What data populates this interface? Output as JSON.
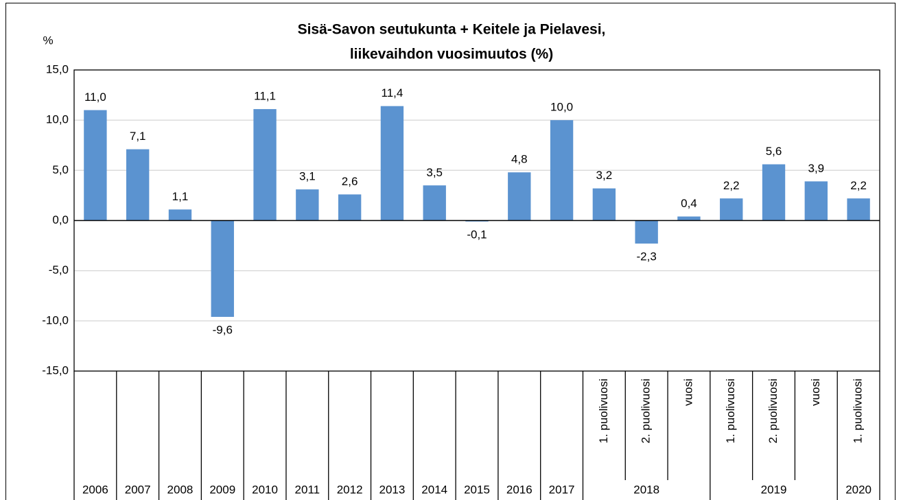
{
  "chart_data": {
    "type": "bar",
    "title": [
      "Sisä-Savon seutukunta + Keitele ja Pielavesi,",
      "liikevaihdon vuosimuutos (%)"
    ],
    "ylabel": "%",
    "groups": [
      {
        "label": "2006",
        "categories": [
          null
        ]
      },
      {
        "label": "2007",
        "categories": [
          null
        ]
      },
      {
        "label": "2008",
        "categories": [
          null
        ]
      },
      {
        "label": "2009",
        "categories": [
          null
        ]
      },
      {
        "label": "2010",
        "categories": [
          null
        ]
      },
      {
        "label": "2011",
        "categories": [
          null
        ]
      },
      {
        "label": "2012",
        "categories": [
          null
        ]
      },
      {
        "label": "2013",
        "categories": [
          null
        ]
      },
      {
        "label": "2014",
        "categories": [
          null
        ]
      },
      {
        "label": "2015",
        "categories": [
          null
        ]
      },
      {
        "label": "2016",
        "categories": [
          null
        ]
      },
      {
        "label": "2017",
        "categories": [
          null
        ]
      },
      {
        "label": "2018",
        "categories": [
          "1. puolivuosi",
          "2. puolivuosi",
          "vuosi"
        ]
      },
      {
        "label": "2019",
        "categories": [
          "1. puolivuosi",
          "2. puolivuosi",
          "vuosi"
        ]
      },
      {
        "label": "2020",
        "categories": [
          "1. puolivuosi"
        ]
      }
    ],
    "values": [
      11.0,
      7.1,
      1.1,
      -9.6,
      11.1,
      3.1,
      2.6,
      11.4,
      3.5,
      -0.1,
      4.8,
      10.0,
      3.2,
      -2.3,
      0.4,
      2.2,
      5.6,
      3.9,
      2.2
    ],
    "value_labels": [
      "11,0",
      "7,1",
      "1,1",
      "-9,6",
      "11,1",
      "3,1",
      "2,6",
      "11,4",
      "3,5",
      "-0,1",
      "4,8",
      "10,0",
      "3,2",
      "-2,3",
      "0,4",
      "2,2",
      "5,6",
      "3,9",
      "2,2"
    ],
    "color": "#5b93d0",
    "ylim": [
      -15,
      15
    ],
    "yticks": [
      {
        "value": -15,
        "label": "-15,0"
      },
      {
        "value": -10,
        "label": "-10,0"
      },
      {
        "value": -5,
        "label": "-5,0"
      },
      {
        "value": 0,
        "label": "0,0"
      },
      {
        "value": 5,
        "label": "5,0"
      },
      {
        "value": 10,
        "label": "10,0"
      },
      {
        "value": 15,
        "label": "15,0"
      }
    ],
    "grid": true
  }
}
